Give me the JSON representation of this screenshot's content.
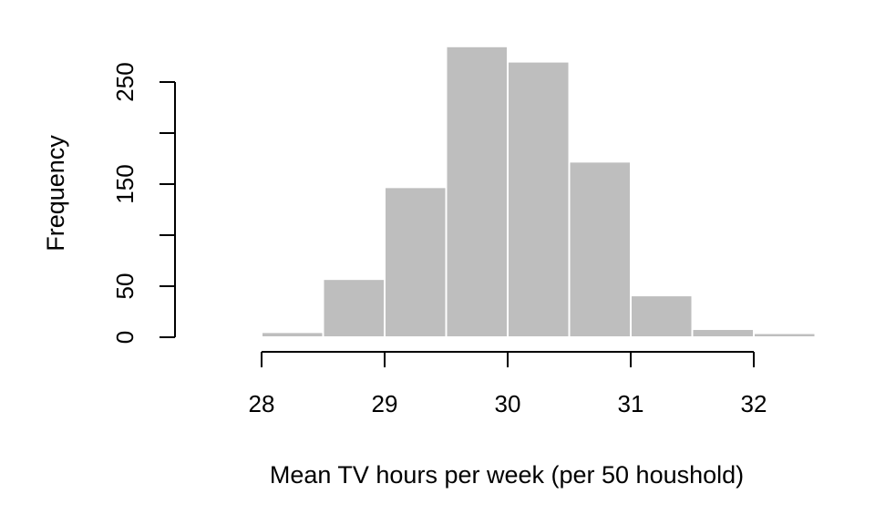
{
  "chart_data": {
    "type": "bar",
    "title": "",
    "xlabel": "Mean TV hours per week (per 50 houshold)",
    "ylabel": "Frequency",
    "bin_edges": [
      28,
      28.5,
      29,
      29.5,
      30,
      30.5,
      31,
      31.5,
      32,
      32.5
    ],
    "values": [
      5,
      57,
      147,
      285,
      270,
      172,
      41,
      8,
      4
    ],
    "xlim": [
      28,
      32.5
    ],
    "ylim": [
      0,
      290
    ],
    "x_ticks": [
      28,
      29,
      30,
      31,
      32
    ],
    "y_ticks": [
      0,
      50,
      150,
      250
    ],
    "x_tick_labels": [
      "28",
      "29",
      "30",
      "31",
      "32"
    ],
    "y_tick_labels": [
      "0",
      "50",
      "150",
      "250"
    ],
    "bar_color": "#bebebe",
    "bar_border_color": "#ffffff",
    "axis_color": "#000000",
    "grid": false,
    "legend": "none"
  }
}
